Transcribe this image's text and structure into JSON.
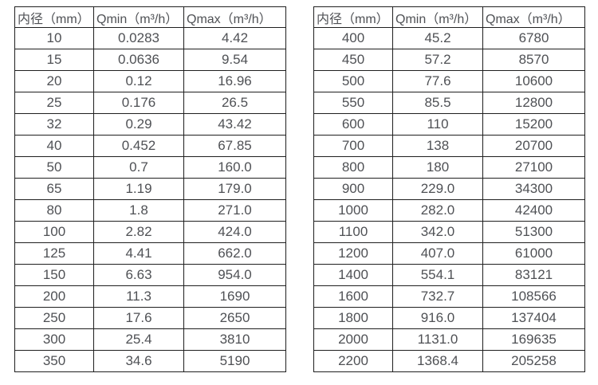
{
  "colors": {
    "background": "#ffffff",
    "table_border": "#1f1f1f",
    "text": "#4f5155"
  },
  "tables": [
    {
      "name": "flow-table-small-diameters",
      "headers": [
        "内径（mm）",
        "Qmin（m³/h）",
        "Qmax（m³/h）"
      ],
      "rows": [
        [
          "10",
          "0.0283",
          "4.42"
        ],
        [
          "15",
          "0.0636",
          "9.54"
        ],
        [
          "20",
          "0.12",
          "16.96"
        ],
        [
          "25",
          "0.176",
          "26.5"
        ],
        [
          "32",
          "0.29",
          "43.42"
        ],
        [
          "40",
          "0.452",
          "67.85"
        ],
        [
          "50",
          "0.7",
          "160.0"
        ],
        [
          "65",
          "1.19",
          "179.0"
        ],
        [
          "80",
          "1.8",
          "271.0"
        ],
        [
          "100",
          "2.82",
          "424.0"
        ],
        [
          "125",
          "4.41",
          "662.0"
        ],
        [
          "150",
          "6.63",
          "954.0"
        ],
        [
          "200",
          "11.3",
          "1690"
        ],
        [
          "250",
          "17.6",
          "2650"
        ],
        [
          "300",
          "25.4",
          "3810"
        ],
        [
          "350",
          "34.6",
          "5190"
        ]
      ]
    },
    {
      "name": "flow-table-large-diameters",
      "headers": [
        "内径（mm）",
        "Qmin（m³/h）",
        "Qmax（m³/h）"
      ],
      "rows": [
        [
          "400",
          "45.2",
          "6780"
        ],
        [
          "450",
          "57.2",
          "8570"
        ],
        [
          "500",
          "77.6",
          "10600"
        ],
        [
          "550",
          "85.5",
          "12800"
        ],
        [
          "600",
          "110",
          "15200"
        ],
        [
          "700",
          "138",
          "20700"
        ],
        [
          "800",
          "180",
          "27100"
        ],
        [
          "900",
          "229.0",
          "34300"
        ],
        [
          "1000",
          "282.0",
          "42400"
        ],
        [
          "1100",
          "342.0",
          "51300"
        ],
        [
          "1200",
          "407.0",
          "61000"
        ],
        [
          "1400",
          "554.1",
          "83121"
        ],
        [
          "1600",
          "732.7",
          "108566"
        ],
        [
          "1800",
          "916.0",
          "137404"
        ],
        [
          "2000",
          "1131.0",
          "169635"
        ],
        [
          "2200",
          "1368.4",
          "205258"
        ]
      ]
    }
  ]
}
